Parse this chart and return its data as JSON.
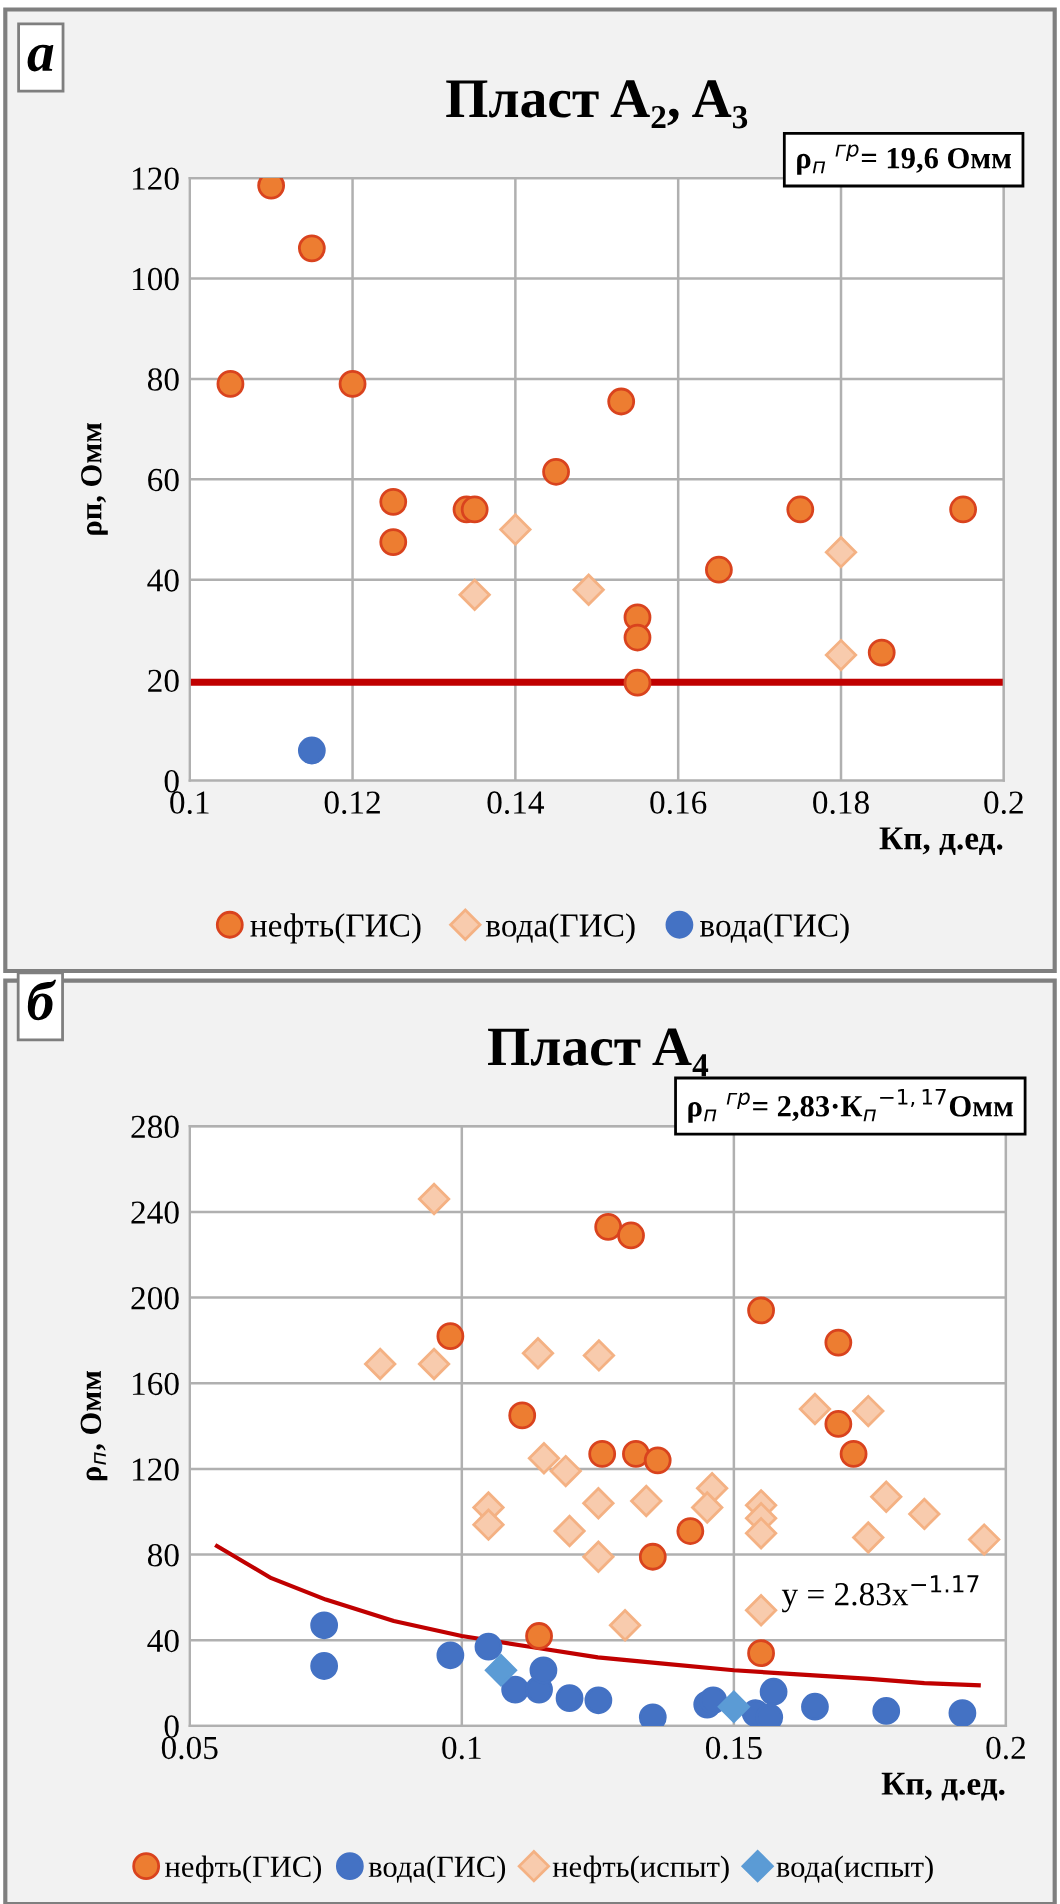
{
  "chart_data": [
    {
      "type": "scatter",
      "title": "Пласт A₂, A₃",
      "xlabel": "Кп, д.ед.",
      "ylabel": "ρп, Омм",
      "xlim": [
        0.1,
        0.2
      ],
      "xticks": [
        0.1,
        0.12,
        0.14,
        0.16,
        0.18,
        0.2
      ],
      "ylim": [
        0,
        120
      ],
      "yticks": [
        0,
        20,
        40,
        60,
        80,
        100,
        120
      ],
      "grid": true,
      "legend": "bottom",
      "annotations": [
        "а",
        "ρ$_{п}$ $^{гр}$= 19,6 Омм"
      ],
      "ref_lines": [
        {
          "axis": "y",
          "value": 19.6,
          "color": "#c00000",
          "line_style": "solid"
        }
      ],
      "series": [
        {
          "name": "нефть(ГИС)",
          "color": "#ed7d31",
          "marker": "circle",
          "x": [
            0.105,
            0.11,
            0.115,
            0.12,
            0.153,
            0.145,
            0.125,
            0.125,
            0.134,
            0.135,
            0.175,
            0.195,
            0.165,
            0.155,
            0.155,
            0.155,
            0.185
          ],
          "values": [
            79,
            118.5,
            106,
            79,
            75.5,
            61.5,
            55.5,
            47.5,
            54,
            54,
            54,
            54,
            42,
            32.5,
            28.5,
            19.5,
            25.5
          ]
        },
        {
          "name": "вода(ГИС)",
          "color": "#f8cbad",
          "marker": "diamond",
          "x": [
            0.14,
            0.135,
            0.149,
            0.18,
            0.18
          ],
          "values": [
            50,
            37,
            38,
            45.5,
            25
          ]
        },
        {
          "name": "вода(ГИС)",
          "color": "#4472c4",
          "marker": "circle",
          "x": [
            0.115
          ],
          "values": [
            6
          ]
        }
      ]
    },
    {
      "type": "scatter",
      "title": "Пласт A₄",
      "xlabel": "Кп, д.ед.",
      "ylabel": "ρ$_{п}$, Омм",
      "xlim": [
        0.05,
        0.2
      ],
      "xticks": [
        0.05,
        0.1,
        0.15,
        0.2
      ],
      "ylim": [
        0,
        280
      ],
      "yticks": [
        0,
        40,
        80,
        120,
        160,
        200,
        240,
        280
      ],
      "grid": true,
      "legend": "bottom",
      "annotations": [
        "б",
        "ρ$_{п}$ $^{гр}$= 2,83·К$_{п}$$^{−1,17}$Омм",
        "y = 2.83x$^{−1.17}$"
      ],
      "series": [
        {
          "name": "нефть(ГИС)",
          "color": "#ed7d31",
          "marker": "circle",
          "x": [
            0.1269,
            0.1311,
            0.0979,
            0.155,
            0.1692,
            0.1111,
            0.1258,
            0.132,
            0.136,
            0.1692,
            0.172,
            0.142,
            0.1351,
            0.1142,
            0.155
          ],
          "values": [
            233,
            229,
            182,
            194,
            179,
            145,
            127,
            127,
            124,
            141,
            127,
            91,
            79,
            42,
            34
          ]
        },
        {
          "name": "вода(ГИС)",
          "color": "#4472c4",
          "marker": "circle",
          "x": [
            0.0747,
            0.0747,
            0.0979,
            0.1049,
            0.1098,
            0.1142,
            0.115,
            0.1198,
            0.1251,
            0.1351,
            0.1451,
            0.1462,
            0.1573,
            0.154,
            0.1565,
            0.1649,
            0.178,
            0.192
          ],
          "values": [
            47,
            28,
            33,
            37,
            17,
            17,
            26,
            13,
            12,
            4,
            10,
            12,
            16,
            6,
            4,
            9,
            7,
            6
          ]
        },
        {
          "name": "нефть(испыт)",
          "color": "#f8cbad",
          "marker": "diamond",
          "x": [
            0.0949,
            0.085,
            0.0949,
            0.114,
            0.1252,
            0.1649,
            0.1747,
            0.1151,
            0.1191,
            0.1049,
            0.1049,
            0.1251,
            0.1339,
            0.146,
            0.1451,
            0.1198,
            0.1251,
            0.13,
            0.155,
            0.155,
            0.155,
            0.155,
            0.178,
            0.185,
            0.1747,
            0.196
          ],
          "values": [
            246,
            169,
            169,
            174,
            173,
            148,
            147,
            125,
            119,
            102,
            94,
            104,
            105,
            111,
            102,
            91,
            79,
            47,
            103,
            97,
            90,
            54,
            107,
            99,
            88,
            87
          ]
        },
        {
          "name": "вода(испыт)",
          "color": "#5b9bd5",
          "marker": "diamond",
          "x": [
            0.1072,
            0.15
          ],
          "values": [
            26,
            9
          ]
        },
        {
          "type": "line",
          "color": "#c00000",
          "x": [
            0.055,
            0.065,
            0.075,
            0.0875,
            0.1,
            0.1125,
            0.125,
            0.1375,
            0.15,
            0.1625,
            0.175,
            0.185,
            0.195
          ],
          "values": [
            84,
            69,
            59,
            49,
            42,
            37,
            32,
            29,
            26,
            24,
            22,
            20,
            19
          ]
        }
      ]
    }
  ]
}
